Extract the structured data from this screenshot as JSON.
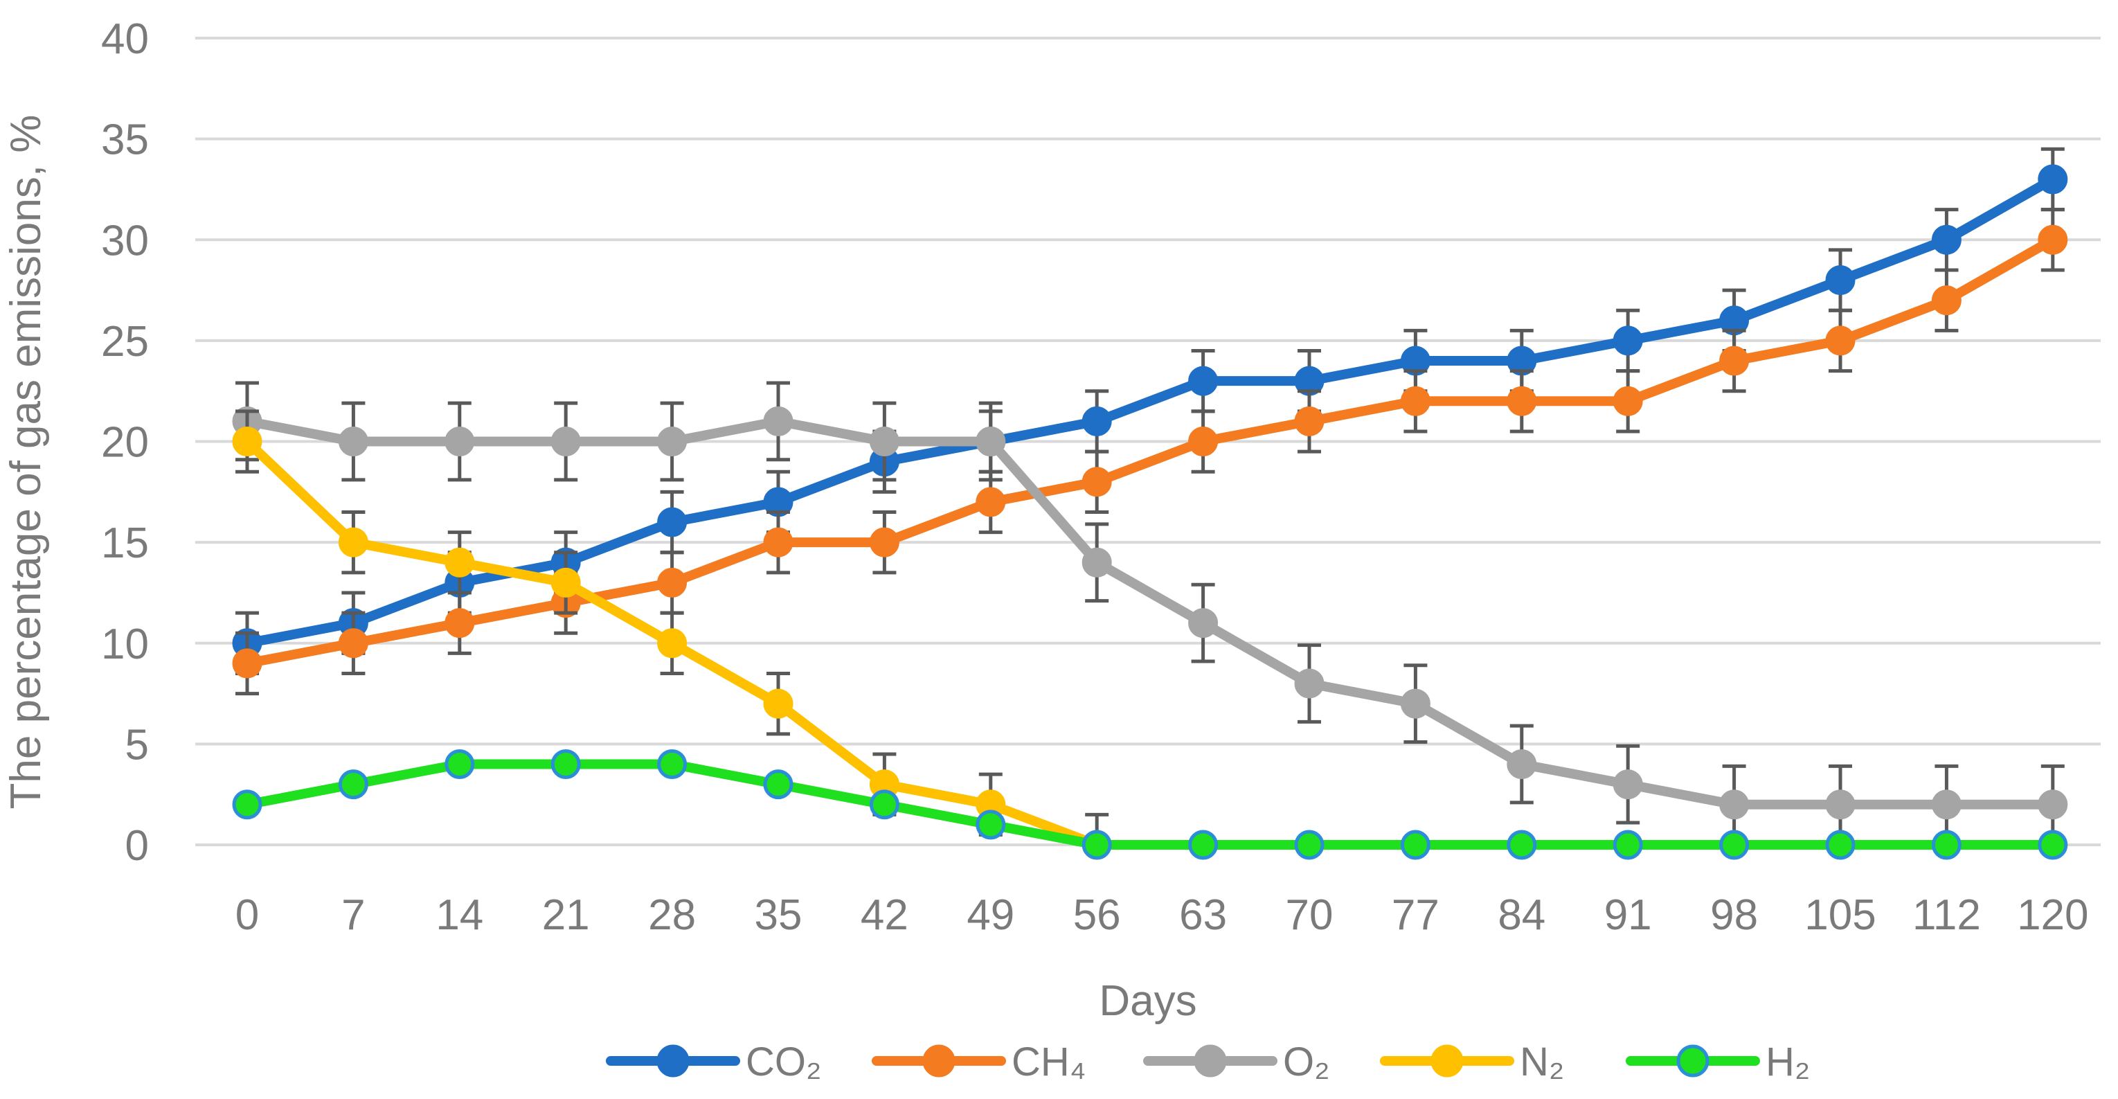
{
  "chart_data": {
    "type": "line",
    "title": "",
    "xlabel": "Days",
    "ylabel": "The percentage of gas emissions, %",
    "categories": [
      "0",
      "7",
      "14",
      "21",
      "28",
      "35",
      "42",
      "49",
      "56",
      "63",
      "70",
      "77",
      "84",
      "91",
      "98",
      "105",
      "112",
      "120"
    ],
    "ylim": [
      0,
      40
    ],
    "yticks": [
      0,
      5,
      10,
      15,
      20,
      25,
      30,
      35,
      40
    ],
    "grid": "horizontal",
    "legend_position": "bottom",
    "series": [
      {
        "name": "CO₂",
        "color": "#1f6fc6",
        "marker_edge": "#1f6fc6",
        "values": [
          10,
          11,
          13,
          14,
          16,
          17,
          19,
          20,
          21,
          23,
          23,
          24,
          24,
          25,
          26,
          28,
          30,
          33
        ],
        "error": [
          1.5,
          1.5,
          1.5,
          1.5,
          1.5,
          1.5,
          1.5,
          1.5,
          1.5,
          1.5,
          1.5,
          1.5,
          1.5,
          1.5,
          1.5,
          1.5,
          1.5,
          1.5
        ]
      },
      {
        "name": "CH₄",
        "color": "#f47b20",
        "marker_edge": "#f47b20",
        "values": [
          9,
          10,
          11,
          12,
          13,
          15,
          15,
          17,
          18,
          20,
          21,
          22,
          22,
          22,
          24,
          25,
          27,
          30
        ],
        "error": [
          1.5,
          1.5,
          1.5,
          1.5,
          1.5,
          1.5,
          1.5,
          1.5,
          1.5,
          1.5,
          1.5,
          1.5,
          1.5,
          1.5,
          1.5,
          1.5,
          1.5,
          1.5
        ]
      },
      {
        "name": "O₂",
        "color": "#a5a5a5",
        "marker_edge": "#a5a5a5",
        "values": [
          21,
          20,
          20,
          20,
          20,
          21,
          20,
          20,
          14,
          11,
          8,
          7,
          4,
          3,
          2,
          2,
          2,
          2
        ],
        "error": [
          1.9,
          1.9,
          1.9,
          1.9,
          1.9,
          1.9,
          1.9,
          1.9,
          1.9,
          1.9,
          1.9,
          1.9,
          1.9,
          1.9,
          1.9,
          1.9,
          1.9,
          1.9
        ]
      },
      {
        "name": "N₂",
        "color": "#ffc000",
        "marker_edge": "#ffc000",
        "values": [
          20,
          15,
          14,
          13,
          10,
          7,
          3,
          2,
          0,
          null,
          null,
          null,
          null,
          null,
          null,
          null,
          null,
          null
        ],
        "error": [
          1.5,
          1.5,
          1.5,
          1.5,
          1.5,
          1.5,
          1.5,
          1.5,
          1.5,
          null,
          null,
          null,
          null,
          null,
          null,
          null,
          null,
          null
        ]
      },
      {
        "name": "H₂",
        "color": "#1fe01f",
        "marker_edge": "#2a8fd6",
        "values": [
          2,
          3,
          4,
          4,
          4,
          3,
          2,
          1,
          0,
          0,
          0,
          0,
          0,
          0,
          0,
          0,
          0,
          0
        ],
        "error": [
          null,
          null,
          null,
          null,
          null,
          null,
          null,
          null,
          null,
          null,
          null,
          null,
          null,
          null,
          null,
          null,
          null,
          null
        ]
      }
    ]
  }
}
